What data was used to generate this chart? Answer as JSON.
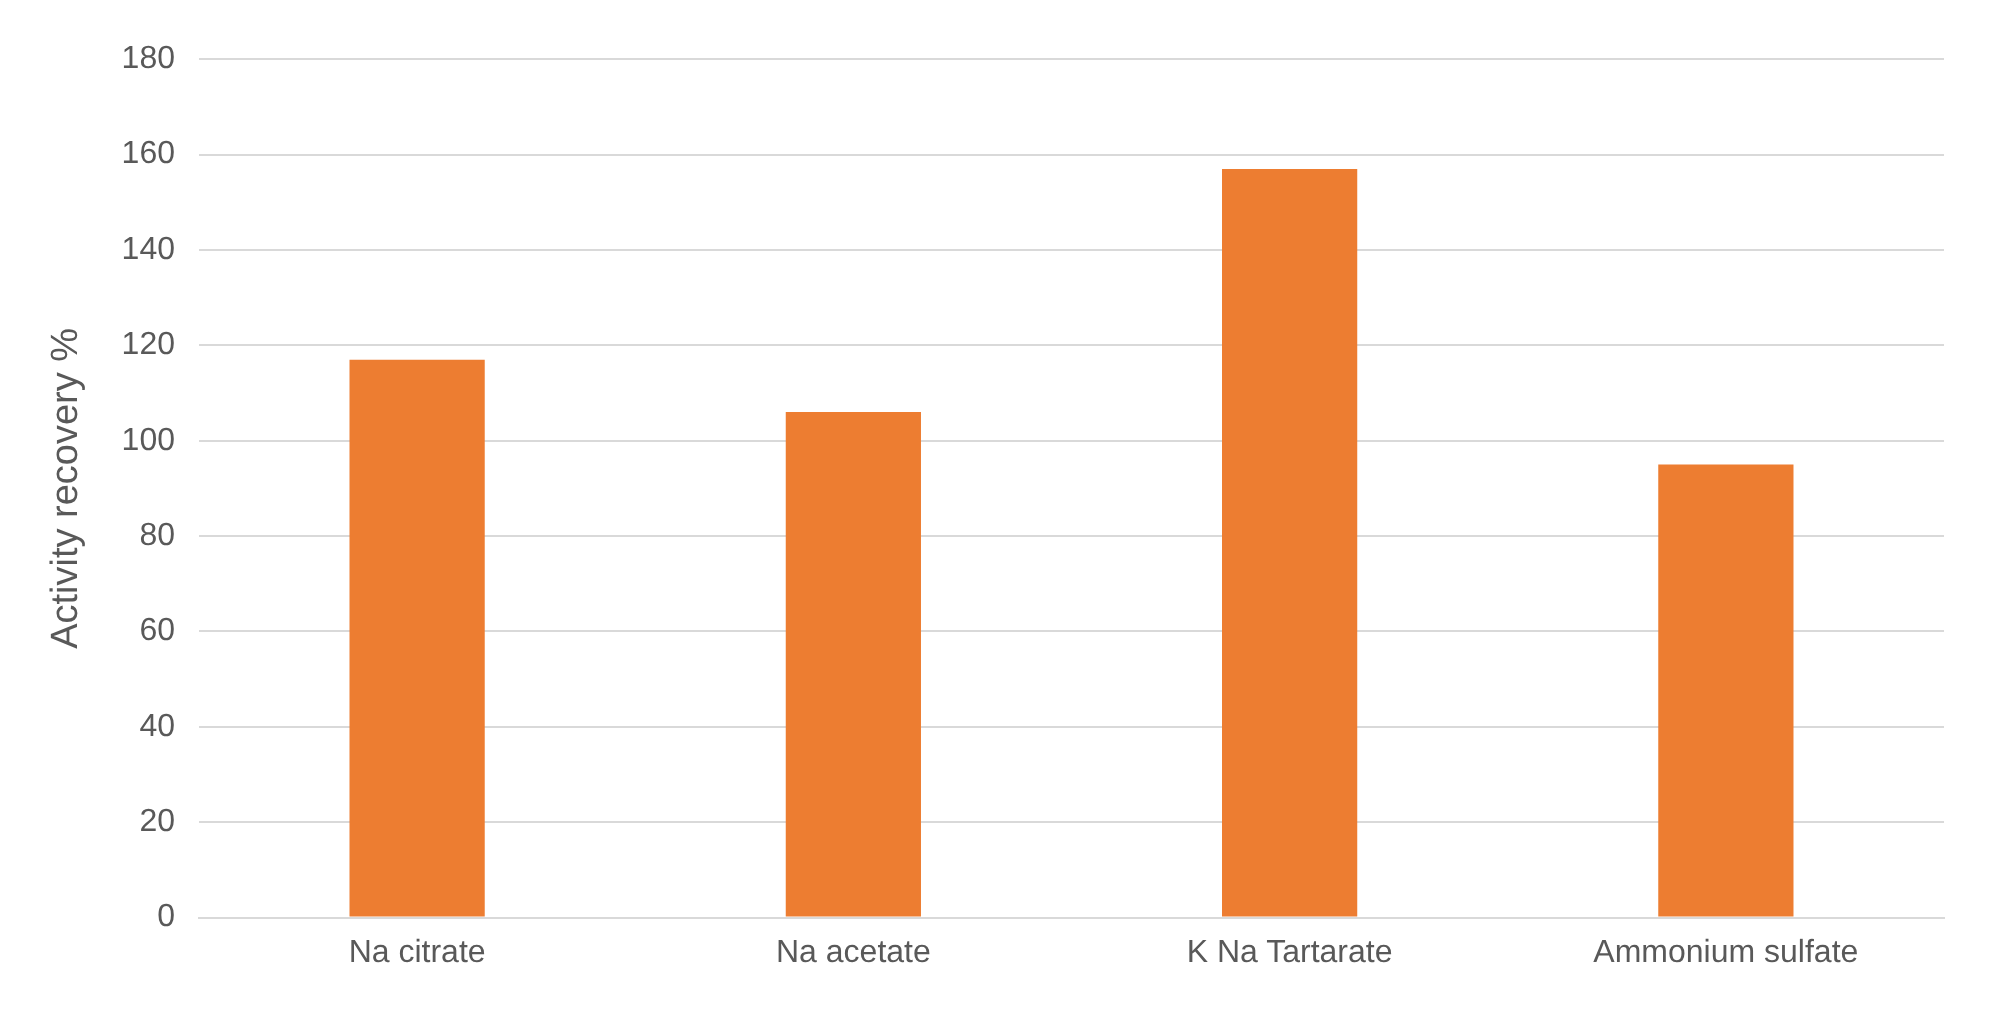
{
  "chart_data": {
    "type": "bar",
    "ylabel": "Activity recovery %",
    "categories": [
      "Na citrate",
      "Na acetate",
      "K Na Tartarate",
      "Ammonium sulfate"
    ],
    "values": [
      117,
      106,
      157,
      95
    ],
    "color": "#ed7d31",
    "ylim": [
      0,
      180
    ],
    "yticks": [
      0,
      20,
      40,
      60,
      80,
      100,
      120,
      140,
      160,
      180
    ],
    "grid": "y"
  }
}
